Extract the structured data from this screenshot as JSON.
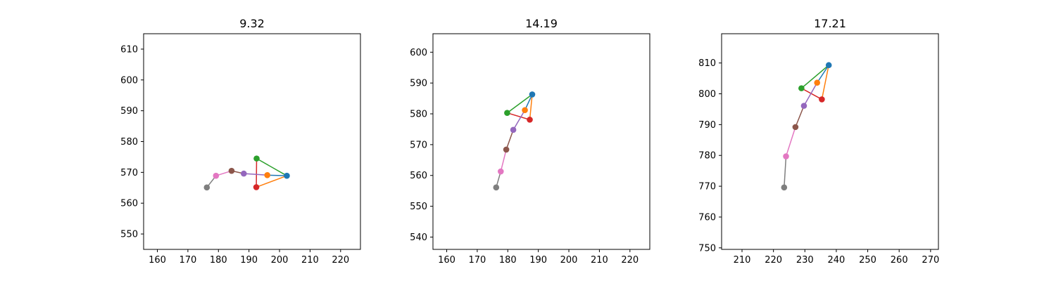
{
  "chart_data": [
    {
      "type": "line",
      "title": "9.32",
      "xlim": [
        155.5,
        226.5
      ],
      "ylim": [
        545,
        615
      ],
      "xticks": [
        160,
        170,
        180,
        190,
        200,
        210,
        220
      ],
      "yticks": [
        550,
        560,
        570,
        580,
        590,
        600,
        610
      ],
      "points": {
        "p0": [
          202.4,
          568.9
        ],
        "p1": [
          196.0,
          569.1
        ],
        "p2": [
          192.5,
          574.5
        ],
        "p3": [
          192.4,
          565.2
        ],
        "p4": [
          188.3,
          569.6
        ],
        "p5": [
          184.3,
          570.5
        ],
        "p6": [
          179.2,
          568.9
        ],
        "p7": [
          176.2,
          565.1
        ]
      }
    },
    {
      "type": "line",
      "title": "14.19",
      "xlim": [
        155.5,
        226.5
      ],
      "ylim": [
        536,
        606
      ],
      "xticks": [
        160,
        170,
        180,
        190,
        200,
        210,
        220
      ],
      "yticks": [
        540,
        550,
        560,
        570,
        580,
        590,
        600
      ],
      "points": {
        "p0": [
          188.0,
          586.3
        ],
        "p1": [
          185.6,
          581.2
        ],
        "p2": [
          179.8,
          580.3
        ],
        "p3": [
          187.2,
          578.1
        ],
        "p4": [
          181.8,
          574.8
        ],
        "p5": [
          179.5,
          568.4
        ],
        "p6": [
          177.7,
          561.3
        ],
        "p7": [
          176.2,
          556.1
        ]
      }
    },
    {
      "type": "line",
      "title": "17.21",
      "xlim": [
        203.5,
        272.5
      ],
      "ylim": [
        749.5,
        819.5
      ],
      "xticks": [
        210,
        220,
        230,
        240,
        250,
        260,
        270
      ],
      "yticks": [
        750,
        760,
        770,
        780,
        790,
        800,
        810
      ],
      "points": {
        "p0": [
          237.6,
          809.3
        ],
        "p1": [
          233.9,
          803.6
        ],
        "p2": [
          228.9,
          801.8
        ],
        "p3": [
          235.4,
          798.2
        ],
        "p4": [
          229.7,
          796.1
        ],
        "p5": [
          227.0,
          789.2
        ],
        "p6": [
          224.0,
          779.7
        ],
        "p7": [
          223.4,
          769.6
        ]
      }
    }
  ],
  "segments": [
    {
      "from": "p0",
      "to": "p1",
      "color": "#1f77b4"
    },
    {
      "from": "p0",
      "to": "p2",
      "color": "#2ca02c"
    },
    {
      "from": "p0",
      "to": "p3",
      "color": "#ff7f0e"
    },
    {
      "from": "p2",
      "to": "p3",
      "color": "#d62728"
    },
    {
      "from": "p1",
      "to": "p4",
      "color": "#9467bd"
    },
    {
      "from": "p4",
      "to": "p5",
      "color": "#8c564b"
    },
    {
      "from": "p5",
      "to": "p6",
      "color": "#e377c2"
    },
    {
      "from": "p6",
      "to": "p7",
      "color": "#7f7f7f"
    }
  ],
  "marker_colors": {
    "p0": "#1f77b4",
    "p1": "#ff7f0e",
    "p2": "#2ca02c",
    "p3": "#d62728",
    "p4": "#9467bd",
    "p5": "#8c564b",
    "p6": "#e377c2",
    "p7": "#7f7f7f"
  }
}
